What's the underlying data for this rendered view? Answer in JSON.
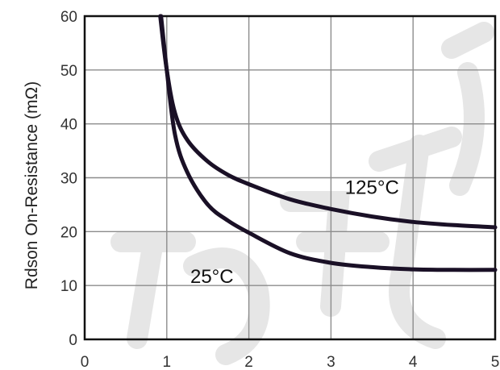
{
  "chart_data": {
    "type": "line",
    "title": "",
    "xlabel": "",
    "ylabel": "Rdson On-Resistance (mΩ)",
    "xlim": [
      0,
      5
    ],
    "ylim": [
      0,
      60
    ],
    "x_ticks": [
      "0",
      "1",
      "2",
      "3",
      "4",
      "5"
    ],
    "y_ticks": [
      "0",
      "10",
      "20",
      "30",
      "40",
      "50",
      "60"
    ],
    "grid": true,
    "series": [
      {
        "name": "125°C",
        "color": "#1a1026",
        "x": [
          0.92,
          1.0,
          1.1,
          1.25,
          1.5,
          1.75,
          2.0,
          2.5,
          3.0,
          3.5,
          4.0,
          4.5,
          5.0
        ],
        "y": [
          60,
          50,
          42,
          37,
          33,
          30.5,
          28.8,
          26.0,
          24.2,
          22.8,
          21.8,
          21.2,
          20.8
        ]
      },
      {
        "name": "25°C",
        "color": "#1a1026",
        "x": [
          0.93,
          1.0,
          1.1,
          1.25,
          1.5,
          1.75,
          2.0,
          2.5,
          3.0,
          3.5,
          4.0,
          4.5,
          5.0
        ],
        "y": [
          60,
          50,
          38,
          31,
          25,
          22,
          19.8,
          16.0,
          14.2,
          13.4,
          13.0,
          12.9,
          12.9
        ]
      }
    ],
    "annotations": [
      "125°C",
      "25°C"
    ]
  }
}
